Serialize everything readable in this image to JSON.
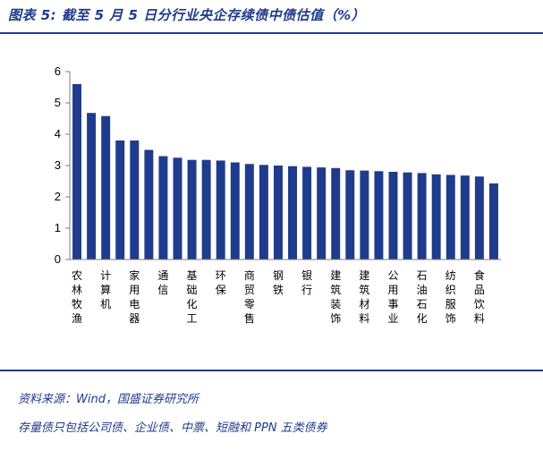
{
  "figure": {
    "title": "图表 5:  截至 5 月 5 日分行业央企存续债中债估值（%）",
    "source": "资料来源：Wind，国盛证券研究所",
    "note": "存量债只包括公司债、企业债、中票、短融和 PPN 五类债券"
  },
  "colors": {
    "bar": "#1f3b8c",
    "accent": "#1f3b8c",
    "axis": "#7f7f7f"
  },
  "chart_data": {
    "type": "bar",
    "title": "截至 5 月 5 日分行业央企存续债中债估值（%）",
    "xlabel": "",
    "ylabel": "",
    "ylim": [
      0,
      6
    ],
    "yticks": [
      0,
      1,
      2,
      3,
      4,
      5,
      6
    ],
    "grid": false,
    "values": [
      5.6,
      4.68,
      4.58,
      3.8,
      3.8,
      3.5,
      3.3,
      3.25,
      3.18,
      3.18,
      3.16,
      3.1,
      3.05,
      3.02,
      3.0,
      2.98,
      2.96,
      2.94,
      2.92,
      2.85,
      2.84,
      2.82,
      2.8,
      2.78,
      2.76,
      2.72,
      2.7,
      2.68,
      2.65,
      2.43
    ],
    "category_labels": [
      "农林牧渔",
      "计算机",
      "家用电器",
      "通信",
      "基础化工",
      "环保",
      "商贸零售",
      "钢铁",
      "银行",
      "建筑装饰",
      "建筑材料",
      "公用事业",
      "石油石化",
      "纺织服饰",
      "食品饮料"
    ]
  }
}
